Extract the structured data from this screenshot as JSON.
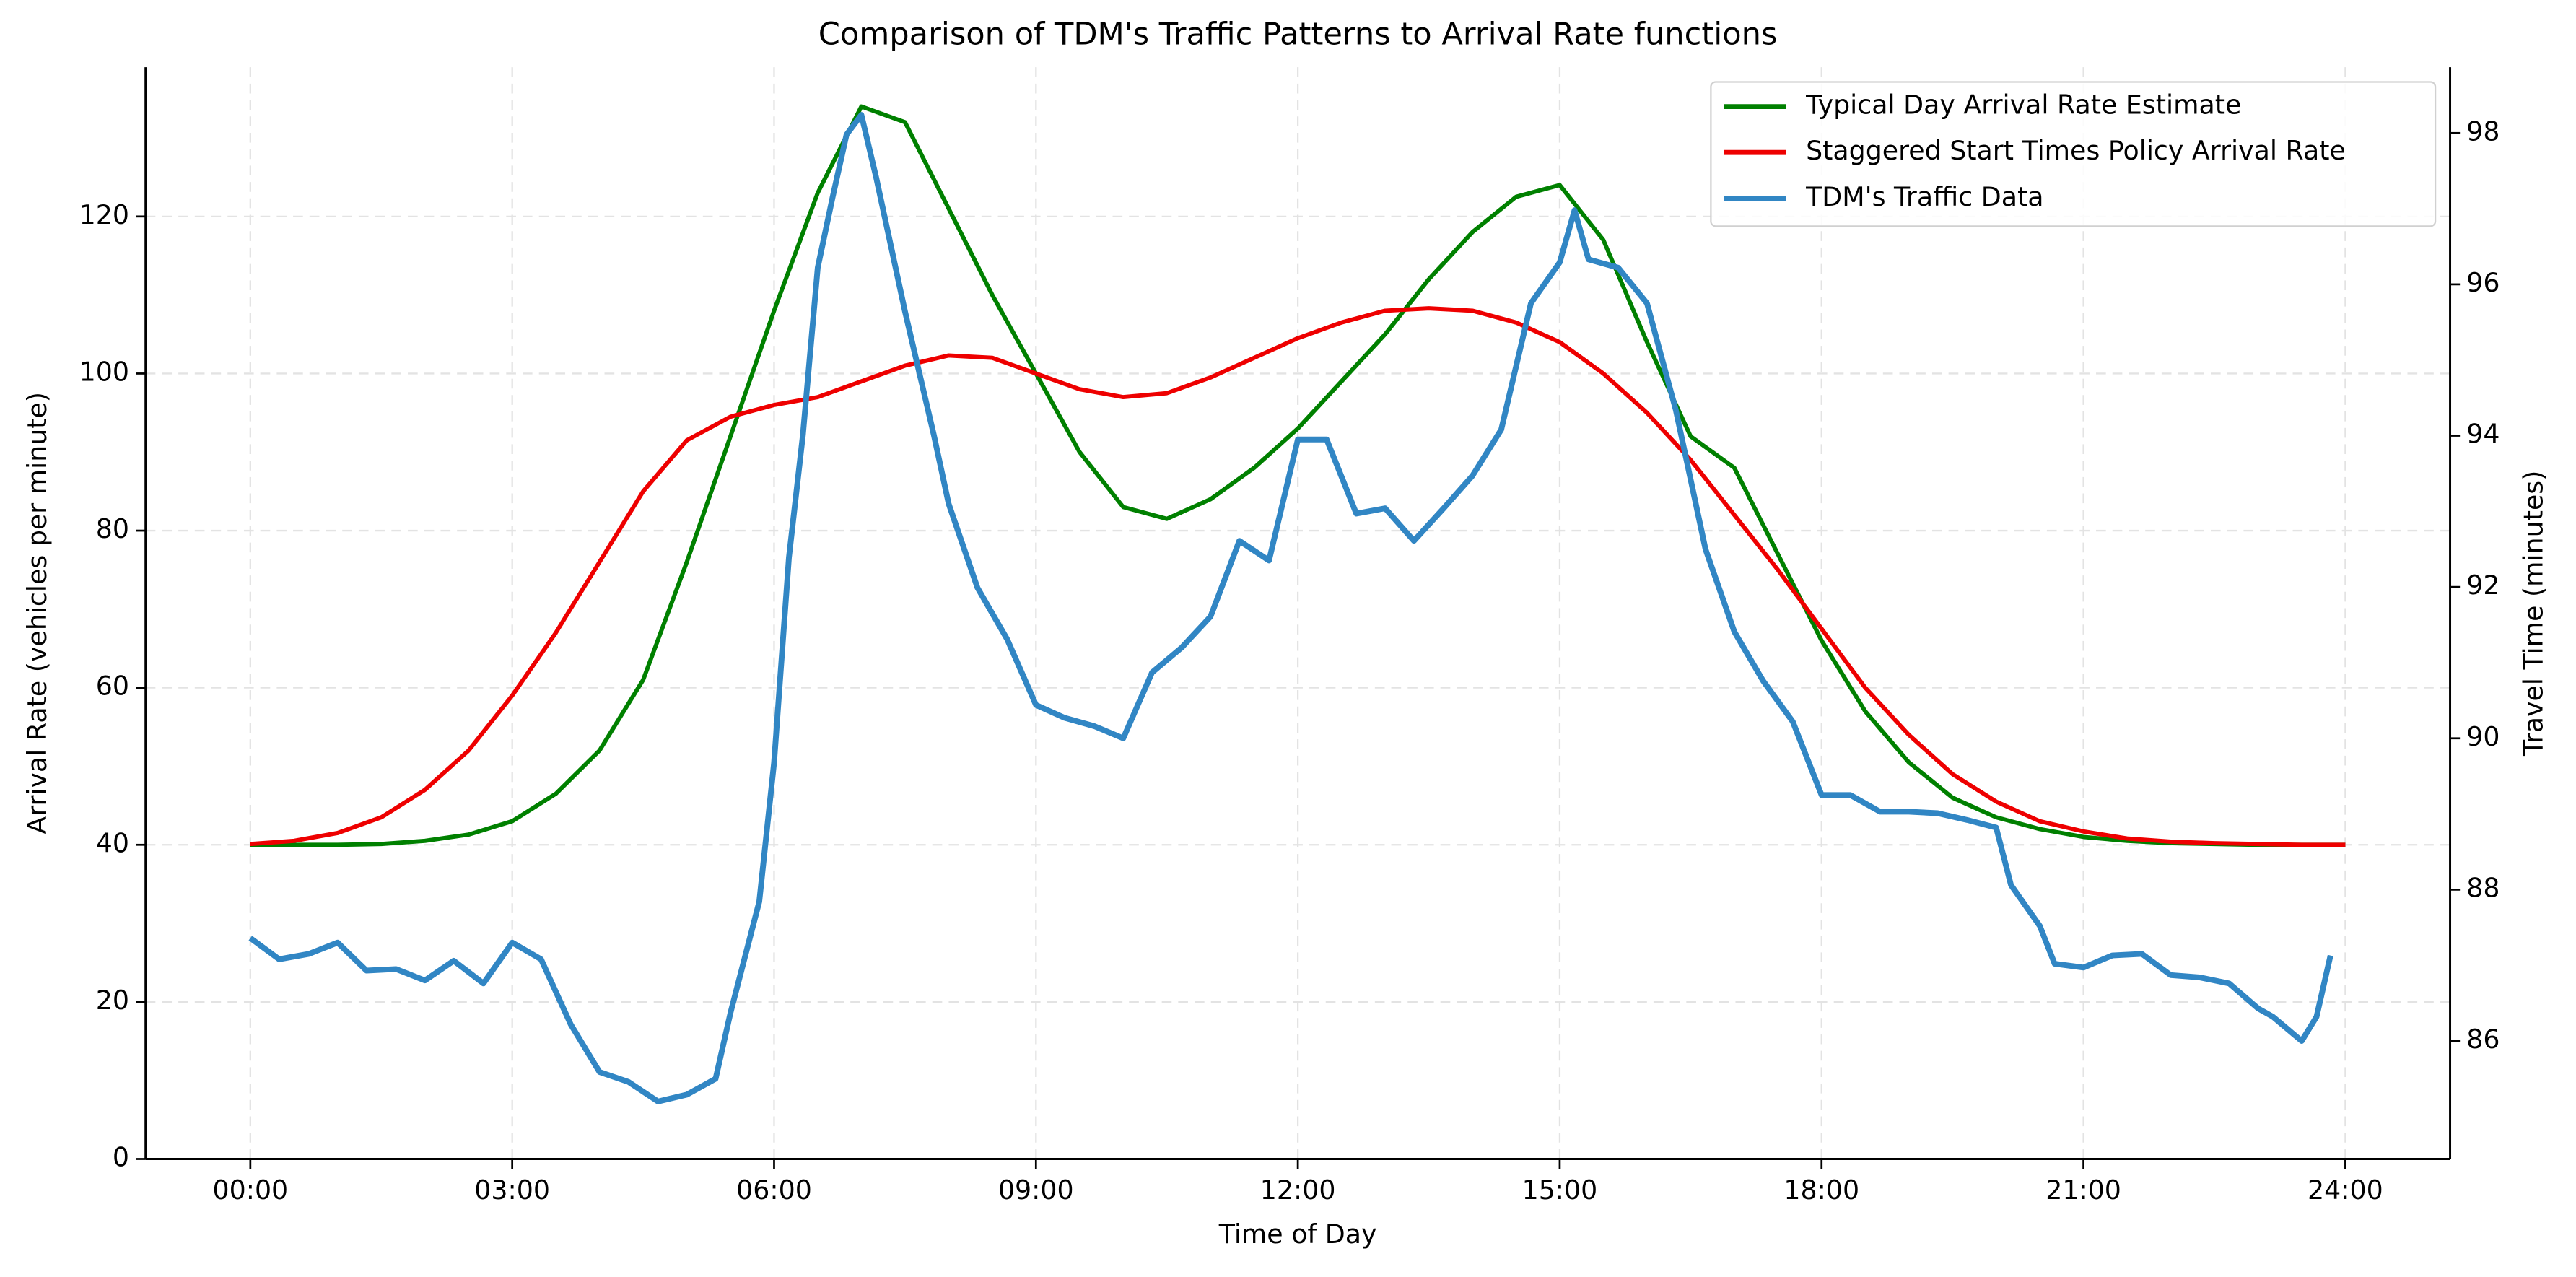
{
  "chart_data": {
    "type": "line",
    "title": "Comparison of TDM's Traffic Patterns to Arrival Rate functions",
    "xlabel": "Time of Day",
    "ylabel": "Arrival Rate (vehicles per minute)",
    "y2label": "Travel Time (minutes)",
    "xlim": [
      -1.2,
      25.2
    ],
    "xticks": [
      {
        "value": 0,
        "label": "00:00"
      },
      {
        "value": 3,
        "label": "03:00"
      },
      {
        "value": 6,
        "label": "06:00"
      },
      {
        "value": 9,
        "label": "09:00"
      },
      {
        "value": 12,
        "label": "12:00"
      },
      {
        "value": 15,
        "label": "15:00"
      },
      {
        "value": 18,
        "label": "18:00"
      },
      {
        "value": 21,
        "label": "21:00"
      },
      {
        "value": 24,
        "label": "24:00"
      }
    ],
    "ylim": [
      0,
      139
    ],
    "yticks": [
      0,
      20,
      40,
      60,
      80,
      100,
      120
    ],
    "y2lim": [
      84.44,
      98.87
    ],
    "y2ticks": [
      86,
      88,
      90,
      92,
      94,
      96,
      98
    ],
    "grid": true,
    "legend": "upper right",
    "series": [
      {
        "name": "Typical Day Arrival Rate Estimate",
        "color": "#008000",
        "x": [
          0,
          0.5,
          1,
          1.5,
          2,
          2.5,
          3,
          3.5,
          4,
          4.5,
          5,
          5.5,
          6,
          6.5,
          7,
          7.5,
          8,
          8.5,
          9,
          9.5,
          10,
          10.5,
          11,
          11.5,
          12,
          12.5,
          13,
          13.5,
          14,
          14.5,
          15,
          15.5,
          16,
          16.5,
          17,
          17.5,
          18,
          18.5,
          19,
          19.5,
          20,
          20.5,
          21,
          21.5,
          22,
          22.5,
          23,
          23.5,
          24
        ],
        "values": [
          40,
          40,
          40,
          40.1,
          40.5,
          41.3,
          43,
          46.5,
          52,
          61,
          76,
          92,
          108,
          123,
          134,
          132,
          121,
          110,
          100,
          90,
          83,
          81.5,
          84,
          88,
          93,
          99,
          105,
          112,
          118,
          122.5,
          124,
          117,
          104,
          92,
          88,
          77,
          66,
          57,
          50.5,
          46,
          43.5,
          42,
          41,
          40.5,
          40.2,
          40.1,
          40,
          40,
          40
        ]
      },
      {
        "name": "Staggered Start Times Policy Arrival Rate",
        "color": "#ee0000",
        "x": [
          0,
          0.5,
          1,
          1.5,
          2,
          2.5,
          3,
          3.5,
          4,
          4.5,
          5,
          5.5,
          6,
          6.5,
          7,
          7.5,
          8,
          8.5,
          9,
          9.5,
          10,
          10.5,
          11,
          11.5,
          12,
          12.5,
          13,
          13.5,
          14,
          14.5,
          15,
          15.5,
          16,
          16.5,
          17,
          17.5,
          18,
          18.5,
          19,
          19.5,
          20,
          20.5,
          21,
          21.5,
          22,
          22.5,
          23,
          23.5,
          24
        ],
        "values": [
          40.1,
          40.5,
          41.5,
          43.5,
          47,
          52,
          59,
          67,
          76,
          85,
          91.5,
          94.5,
          96,
          97,
          99,
          101,
          102.3,
          102,
          100,
          98,
          97,
          97.5,
          99.5,
          102,
          104.5,
          106.5,
          108,
          108.3,
          108,
          106.5,
          104,
          100,
          95,
          89,
          82,
          75,
          67.5,
          60,
          54,
          49,
          45.5,
          43,
          41.7,
          40.8,
          40.4,
          40.2,
          40.1,
          40,
          40
        ]
      },
      {
        "name": "TDM's Traffic Data",
        "color": "#3186c4",
        "axis": "y2",
        "x": [
          0,
          0.33,
          0.67,
          1,
          1.33,
          1.67,
          2,
          2.33,
          2.67,
          3,
          3.33,
          3.67,
          4,
          4.33,
          4.67,
          5,
          5.33,
          5.5,
          5.83,
          6,
          6.17,
          6.33,
          6.5,
          6.67,
          6.83,
          7,
          7.17,
          7.5,
          7.83,
          8,
          8.33,
          8.67,
          9,
          9.33,
          9.67,
          10,
          10.33,
          10.67,
          11,
          11.33,
          11.67,
          12,
          12.33,
          12.67,
          13,
          13.33,
          13.67,
          14,
          14.33,
          14.67,
          15,
          15.17,
          15.33,
          15.67,
          16,
          16.33,
          16.67,
          17,
          17.33,
          17.67,
          18,
          18.33,
          18.67,
          19,
          19.33,
          19.67,
          20,
          20.17,
          20.5,
          20.67,
          21,
          21.33,
          21.67,
          22,
          22.33,
          22.67,
          23,
          23.17,
          23.5,
          23.67,
          23.83
        ],
        "values": [
          87.36,
          87.08,
          87.15,
          87.3,
          86.93,
          86.95,
          86.8,
          87.06,
          86.76,
          87.3,
          87.08,
          86.22,
          85.59,
          85.46,
          85.2,
          85.29,
          85.5,
          86.37,
          87.84,
          89.68,
          92.39,
          94.01,
          96.22,
          97.15,
          97.98,
          98.24,
          97.41,
          95.64,
          94.01,
          93.1,
          91.99,
          91.31,
          90.44,
          90.27,
          90.16,
          90.0,
          90.87,
          91.2,
          91.61,
          92.61,
          92.35,
          93.95,
          93.95,
          92.97,
          93.04,
          92.61,
          93.04,
          93.47,
          94.08,
          95.75,
          96.29,
          96.98,
          96.33,
          96.22,
          95.75,
          94.34,
          92.5,
          91.41,
          90.76,
          90.22,
          89.25,
          89.25,
          89.03,
          89.03,
          89.01,
          88.92,
          88.82,
          88.06,
          87.52,
          87.02,
          86.97,
          87.13,
          87.15,
          86.87,
          86.84,
          86.76,
          86.43,
          86.32,
          86.0,
          86.32,
          87.13
        ]
      }
    ]
  }
}
